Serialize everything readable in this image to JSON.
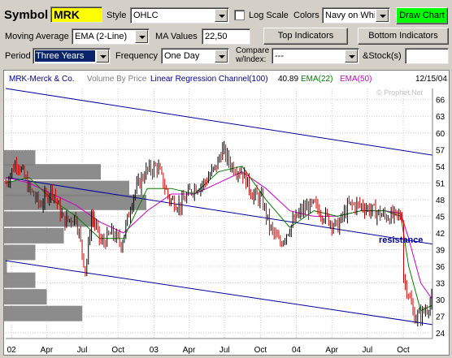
{
  "controls": {
    "symbol_label": "Symbol",
    "symbol_value": "MRK",
    "style_label": "Style",
    "style_value": "OHLC",
    "log_scale_label": "Log Scale",
    "colors_label": "Colors",
    "colors_value": "Navy on White",
    "draw_chart_label": "Draw Chart",
    "moving_average_label": "Moving Average",
    "moving_average_value": "EMA (2-Line)",
    "ma_values_label": "MA Values",
    "ma_values_value": "22,50",
    "top_indicators_label": "Top Indicators",
    "bottom_indicators_label": "Bottom Indicators",
    "period_label": "Period",
    "period_value": "Three Years",
    "frequency_label": "Frequency",
    "frequency_value": "One Day",
    "compare_label_1": "Compare",
    "compare_label_2": "w/Index:",
    "compare_value": "---",
    "stocks_label": "&Stock(s)",
    "stocks_value": ""
  },
  "chart_header": {
    "symbol": "MRK-Merck & Co.",
    "volume_by_price": "Volume By Price",
    "regression": "Linear Regression Channel(100)",
    "last_value": "40.89",
    "ema22": "EMA(22)",
    "ema50": "EMA(50)",
    "date": "12/15/04",
    "watermark": "© Prophet.Net"
  },
  "colors": {
    "navy": "#0000a0",
    "ema22": "#008000",
    "ema50": "#cc00cc",
    "up": "#000000",
    "down": "#cc0000",
    "vbp": "#808080",
    "grid": "#cccccc"
  },
  "chart_data": {
    "type": "line",
    "title": "MRK-Merck & Co.",
    "x_tick_labels": [
      "02",
      "Apr",
      "Jul",
      "Oct",
      "03",
      "Apr",
      "Jul",
      "Oct",
      "04",
      "Apr",
      "Jul",
      "Oct"
    ],
    "y_tick_labels": [
      24,
      27,
      30,
      33,
      36,
      39,
      42,
      45,
      48,
      51,
      54,
      57,
      60,
      63,
      66
    ],
    "ylim": [
      23,
      68
    ],
    "annotation": "resistance",
    "series": [
      {
        "name": "MRK",
        "x": [
          "2001-12-17",
          "2002-01-15",
          "2002-02-15",
          "2002-03-15",
          "2002-04-15",
          "2002-05-15",
          "2002-06-15",
          "2002-07-10",
          "2002-07-25",
          "2002-08-20",
          "2002-09-15",
          "2002-10-10",
          "2002-11-10",
          "2002-12-10",
          "2003-01-10",
          "2003-02-10",
          "2003-03-10",
          "2003-04-10",
          "2003-05-10",
          "2003-06-10",
          "2003-06-25",
          "2003-07-20",
          "2003-08-15",
          "2003-09-10",
          "2003-10-05",
          "2003-10-25",
          "2003-11-20",
          "2003-12-15",
          "2004-01-15",
          "2004-02-15",
          "2004-03-15",
          "2004-04-15",
          "2004-05-15",
          "2004-06-15",
          "2004-07-15",
          "2004-08-15",
          "2004-09-15",
          "2004-09-29",
          "2004-10-01",
          "2004-10-15",
          "2004-10-28",
          "2004-11-10",
          "2004-11-25",
          "2004-12-15"
        ],
        "y": [
          51,
          55,
          50,
          47,
          50,
          44,
          45,
          35,
          45,
          40,
          42,
          40,
          49,
          53,
          54,
          48,
          47,
          50,
          51,
          54,
          57,
          54,
          53,
          49,
          48,
          43,
          40,
          43,
          46,
          47,
          45,
          43,
          47,
          47,
          46,
          45,
          45,
          45,
          34,
          31,
          27,
          27,
          28,
          30
        ]
      }
    ],
    "ema_22": {
      "name": "EMA(22)",
      "x": [
        "2001-12-17",
        "2002-02-15",
        "2002-04-15",
        "2002-06-15",
        "2002-08-15",
        "2002-10-15",
        "2002-12-15",
        "2003-02-15",
        "2003-04-15",
        "2003-06-15",
        "2003-08-15",
        "2003-10-15",
        "2003-12-15",
        "2004-02-15",
        "2004-04-15",
        "2004-06-15",
        "2004-08-15",
        "2004-09-25",
        "2004-10-15",
        "2004-11-15",
        "2004-12-15"
      ],
      "y": [
        51,
        52,
        48,
        45,
        41,
        41,
        50,
        50,
        49,
        53,
        54,
        48,
        43,
        46,
        45,
        46,
        46,
        45,
        36,
        28,
        29
      ]
    },
    "ema_50": {
      "name": "EMA(50)",
      "x": [
        "2001-12-17",
        "2002-02-15",
        "2002-04-15",
        "2002-06-15",
        "2002-08-15",
        "2002-10-15",
        "2002-12-15",
        "2003-02-15",
        "2003-04-15",
        "2003-06-15",
        "2003-08-15",
        "2003-10-15",
        "2003-12-15",
        "2004-02-15",
        "2004-04-15",
        "2004-06-15",
        "2004-08-15",
        "2004-09-25",
        "2004-10-15",
        "2004-11-15",
        "2004-12-15"
      ],
      "y": [
        52,
        51,
        49,
        47,
        44,
        42,
        46,
        49,
        49,
        51,
        53,
        50,
        46,
        45,
        45,
        46,
        46,
        45.5,
        41,
        33,
        30
      ]
    },
    "regression_channel": [
      {
        "name": "upper",
        "start": [
          "2001-12-17",
          68
        ],
        "end": [
          "2004-12-15",
          56
        ]
      },
      {
        "name": "middle",
        "start": [
          "2001-12-17",
          52
        ],
        "end": [
          "2004-12-15",
          40
        ]
      },
      {
        "name": "lower",
        "start": [
          "2001-12-17",
          37
        ],
        "end": [
          "2004-12-15",
          25.5
        ]
      }
    ],
    "volume_by_price": [
      {
        "price": 55.5,
        "volume": 0.22
      },
      {
        "price": 53.0,
        "volume": 0.68
      },
      {
        "price": 50.0,
        "volume": 0.88
      },
      {
        "price": 47.5,
        "volume": 1.0
      },
      {
        "price": 44.5,
        "volume": 0.64
      },
      {
        "price": 41.5,
        "volume": 0.42
      },
      {
        "price": 38.5,
        "volume": 0.22
      },
      {
        "price": 36.0,
        "volume": 0.02
      },
      {
        "price": 33.5,
        "volume": 0.22
      },
      {
        "price": 30.5,
        "volume": 0.3
      },
      {
        "price": 27.5,
        "volume": 0.55
      }
    ]
  }
}
